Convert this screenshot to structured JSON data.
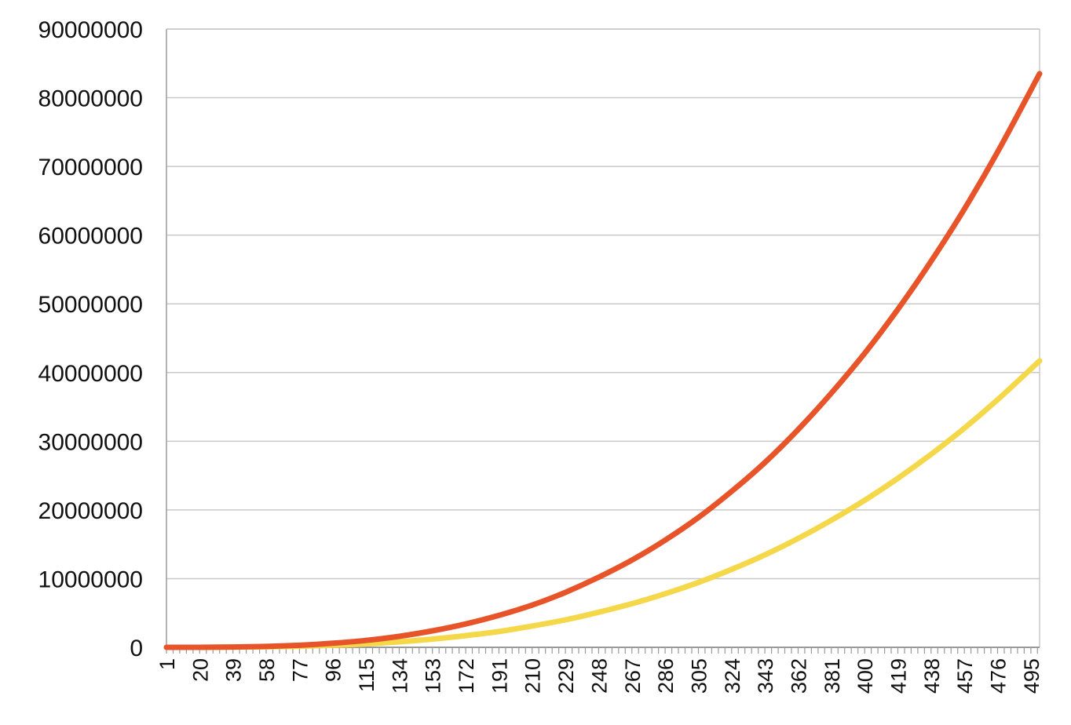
{
  "colors": {
    "background": "#ffffff",
    "gridline": "#c8c8c8",
    "axis": "#9a9a9a",
    "text": "#111111"
  },
  "chart_data": {
    "type": "line",
    "title": "",
    "xlabel": "",
    "ylabel": "",
    "grid": true,
    "legend": "none",
    "x_range": [
      1,
      500
    ],
    "x_tick_labels": [
      "1",
      "20",
      "39",
      "58",
      "77",
      "96",
      "115",
      "134",
      "153",
      "172",
      "191",
      "210",
      "229",
      "248",
      "267",
      "286",
      "305",
      "324",
      "343",
      "362",
      "381",
      "400",
      "419",
      "438",
      "457",
      "476",
      "495"
    ],
    "y_tick_labels": [
      "0",
      "10000000",
      "20000000",
      "30000000",
      "40000000",
      "50000000",
      "60000000",
      "70000000",
      "80000000",
      "90000000"
    ],
    "ylim": [
      0,
      90000000
    ],
    "series": [
      {
        "color": "#e8542a",
        "x": [
          1,
          20,
          39,
          58,
          77,
          96,
          115,
          134,
          153,
          172,
          191,
          210,
          229,
          248,
          267,
          286,
          305,
          324,
          343,
          362,
          381,
          400,
          419,
          438,
          457,
          476,
          500
        ],
        "values": [
          0,
          5000,
          40000,
          130000,
          300000,
          590000,
          1000000,
          1600000,
          2400000,
          3400000,
          4650000,
          6150000,
          8000000,
          10200000,
          12700000,
          15600000,
          18900000,
          22700000,
          26900000,
          31700000,
          37000000,
          42800000,
          49200000,
          56200000,
          63800000,
          72100000,
          83500000
        ]
      },
      {
        "color": "#f5d84a",
        "x": [
          1,
          20,
          39,
          58,
          77,
          96,
          115,
          134,
          153,
          172,
          191,
          210,
          229,
          248,
          267,
          286,
          305,
          324,
          343,
          362,
          381,
          400,
          419,
          438,
          457,
          476,
          500
        ],
        "values": [
          0,
          2500,
          20000,
          65000,
          150000,
          295000,
          500000,
          800000,
          1200000,
          1700000,
          2300000,
          3100000,
          4000000,
          5100000,
          6350000,
          7800000,
          9450000,
          11350000,
          13450000,
          15850000,
          18500000,
          21400000,
          24600000,
          28100000,
          31900000,
          36050000,
          41700000
        ]
      }
    ]
  }
}
